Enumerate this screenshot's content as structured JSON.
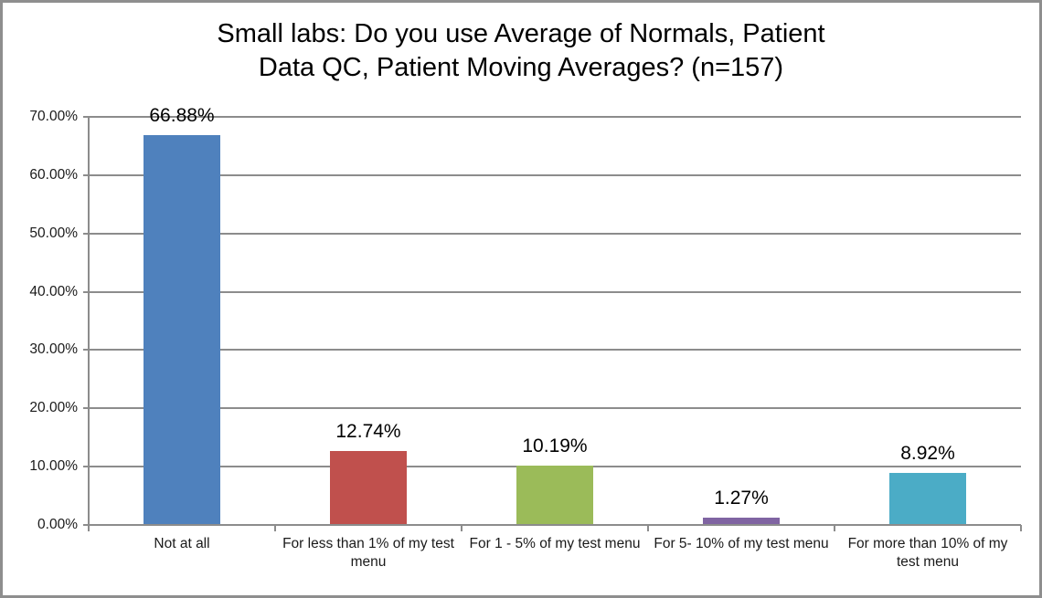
{
  "frame": {
    "background": "#ffffff",
    "border_color": "#8e8e8e"
  },
  "chart_data": {
    "type": "bar",
    "title": "Small labs: Do you use Average of Normals, Patient Data QC, Patient Moving Averages? (n=157)",
    "title_lines": [
      "Small labs: Do you use Average of Normals, Patient",
      "Data QC, Patient Moving Averages? (n=157)"
    ],
    "categories": [
      "Not at all",
      "For less than 1% of my test menu",
      "For 1 - 5% of my test menu",
      "For 5- 10% of my test menu",
      "For more than 10% of my test menu"
    ],
    "values": [
      66.88,
      12.74,
      10.19,
      1.27,
      8.92
    ],
    "data_labels": [
      "66.88%",
      "12.74%",
      "10.19%",
      "1.27%",
      "8.92%"
    ],
    "bar_colors": [
      "#4F81BD",
      "#C0504D",
      "#9BBB59",
      "#8064A2",
      "#4BACC6"
    ],
    "y_ticks": [
      {
        "value": 0,
        "label": "0.00%"
      },
      {
        "value": 10,
        "label": "10.00%"
      },
      {
        "value": 20,
        "label": "20.00%"
      },
      {
        "value": 30,
        "label": "30.00%"
      },
      {
        "value": 40,
        "label": "40.00%"
      },
      {
        "value": 50,
        "label": "50.00%"
      },
      {
        "value": 60,
        "label": "60.00%"
      },
      {
        "value": 70,
        "label": "70.00%"
      }
    ],
    "ylim": [
      0,
      70
    ],
    "xlabel": "",
    "ylabel": "",
    "grid": true,
    "gridline_color": "#8C8C8C",
    "axis_color": "#8C8C8C",
    "legend": "none"
  }
}
